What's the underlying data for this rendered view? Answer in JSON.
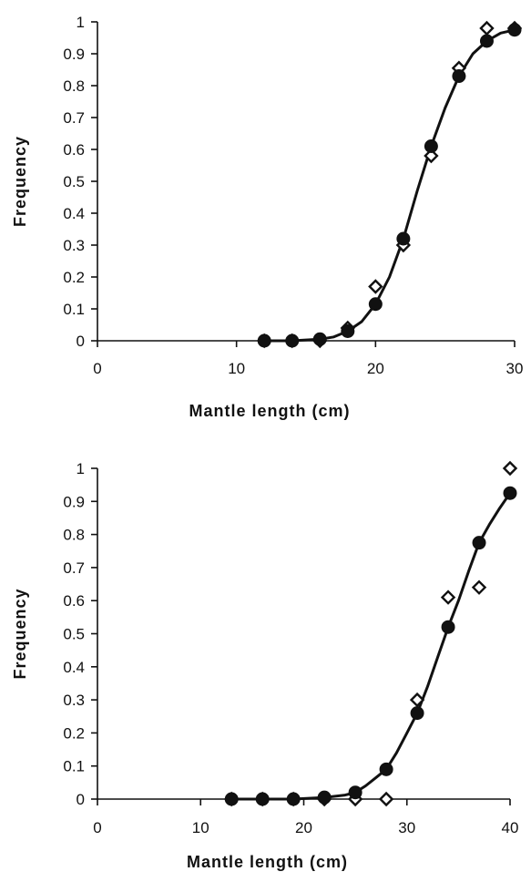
{
  "chart_data": [
    {
      "type": "scatter",
      "title": "",
      "xlabel": "Mantle length (cm)",
      "ylabel": "Frequency",
      "xlim": [
        0,
        30
      ],
      "ylim": [
        0,
        1
      ],
      "xticks": [
        "0",
        "10",
        "20",
        "30"
      ],
      "yticks": [
        "0",
        "0.1",
        "0.2",
        "0.3",
        "0.4",
        "0.5",
        "0.6",
        "0.7",
        "0.8",
        "0.9",
        "1"
      ],
      "grid": false,
      "series": [
        {
          "marker": "filled-circle",
          "x": [
            12,
            14,
            16,
            18,
            20,
            22,
            24,
            26,
            28,
            30
          ],
          "y": [
            0,
            0,
            0.005,
            0.03,
            0.115,
            0.32,
            0.61,
            0.83,
            0.94,
            0.975
          ]
        },
        {
          "marker": "open-diamond",
          "x": [
            12,
            14,
            16,
            18,
            20,
            22,
            24,
            26,
            28,
            30
          ],
          "y": [
            0,
            0,
            0,
            0.04,
            0.17,
            0.3,
            0.58,
            0.855,
            0.98,
            0.98
          ]
        },
        {
          "marker": "line",
          "x": [
            12,
            14,
            16,
            17,
            18,
            19,
            20,
            21,
            22,
            23,
            24,
            25,
            26,
            27,
            28,
            29,
            30
          ],
          "y": [
            0,
            0,
            0.005,
            0.012,
            0.03,
            0.06,
            0.115,
            0.2,
            0.32,
            0.47,
            0.61,
            0.73,
            0.83,
            0.9,
            0.94,
            0.965,
            0.975
          ]
        }
      ]
    },
    {
      "type": "scatter",
      "title": "",
      "xlabel": "Mantle length (cm)",
      "ylabel": "Frequency",
      "xlim": [
        0,
        40
      ],
      "ylim": [
        0,
        1
      ],
      "xticks": [
        "0",
        "10",
        "20",
        "30",
        "40"
      ],
      "yticks": [
        "0",
        "0.1",
        "0.2",
        "0.3",
        "0.4",
        "0.5",
        "0.6",
        "0.7",
        "0.8",
        "0.9",
        "1"
      ],
      "grid": false,
      "series": [
        {
          "marker": "filled-circle",
          "x": [
            13,
            16,
            19,
            22,
            25,
            28,
            31,
            34,
            37,
            40
          ],
          "y": [
            0,
            0,
            0,
            0.005,
            0.02,
            0.09,
            0.26,
            0.52,
            0.775,
            0.925
          ]
        },
        {
          "marker": "open-diamond",
          "x": [
            13,
            16,
            19,
            22,
            25,
            28,
            31,
            34,
            37,
            40
          ],
          "y": [
            0,
            0,
            0,
            0,
            0,
            0,
            0.3,
            0.61,
            0.64,
            1.0
          ]
        },
        {
          "marker": "line",
          "x": [
            13,
            16,
            19,
            22,
            24,
            25,
            26,
            27,
            28,
            29,
            30,
            31,
            32,
            33,
            34,
            35,
            36,
            37,
            38,
            39,
            40
          ],
          "y": [
            0,
            0,
            0,
            0.005,
            0.012,
            0.02,
            0.04,
            0.065,
            0.09,
            0.14,
            0.2,
            0.26,
            0.34,
            0.43,
            0.52,
            0.6,
            0.69,
            0.775,
            0.83,
            0.88,
            0.925
          ]
        }
      ]
    }
  ]
}
